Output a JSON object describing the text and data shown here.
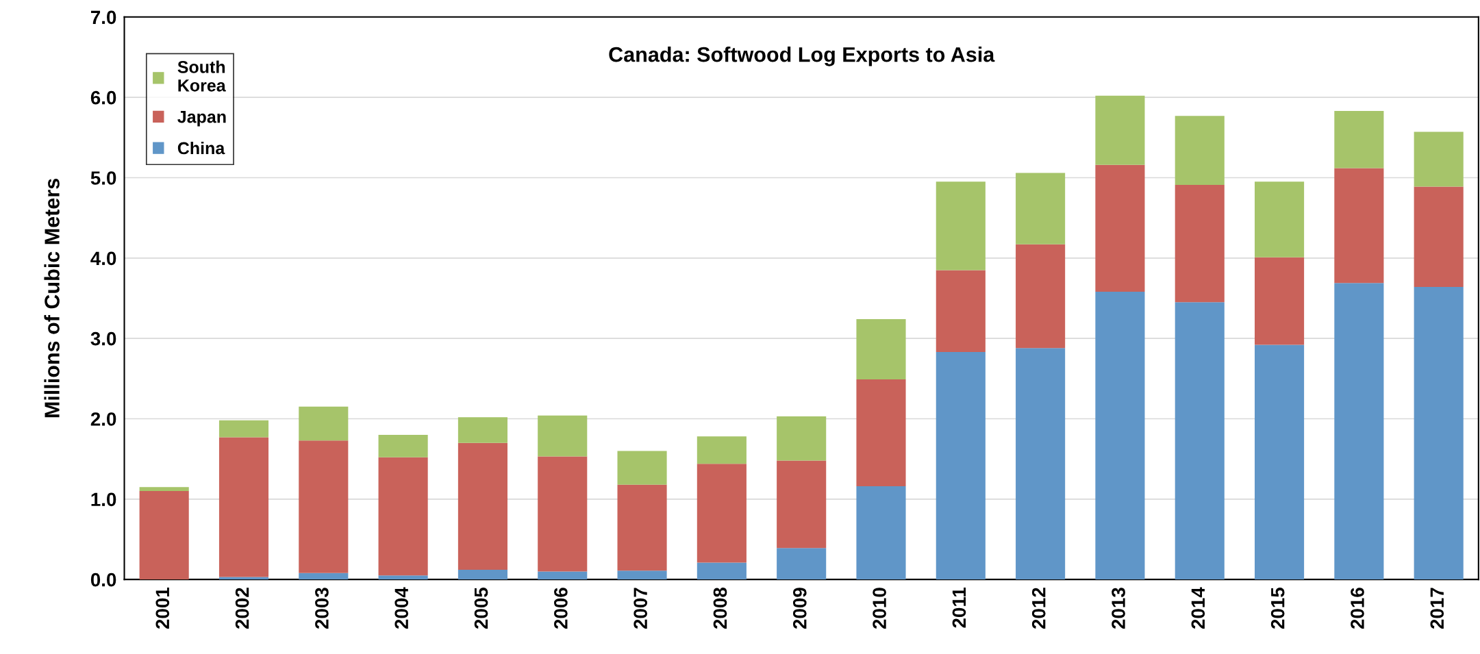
{
  "chart_data": {
    "type": "bar",
    "title": "Canada: Softwood Log Exports to Asia",
    "ylabel": "Millions of Cubic Meters",
    "categories": [
      "2001",
      "2002",
      "2003",
      "2004",
      "2005",
      "2006",
      "2007",
      "2008",
      "2009",
      "2010",
      "2011",
      "2012",
      "2013",
      "2014",
      "2015",
      "2016",
      "2017"
    ],
    "stacked": true,
    "series": [
      {
        "name": "China",
        "color": "#6096c8",
        "values": [
          0.0,
          0.03,
          0.08,
          0.05,
          0.12,
          0.1,
          0.11,
          0.21,
          0.39,
          1.16,
          2.83,
          2.88,
          3.58,
          3.45,
          2.92,
          3.69,
          3.64
        ]
      },
      {
        "name": "Japan",
        "color": "#c9625a",
        "values": [
          1.1,
          1.74,
          1.65,
          1.47,
          1.58,
          1.43,
          1.07,
          1.23,
          1.09,
          1.33,
          1.02,
          1.29,
          1.58,
          1.46,
          1.09,
          1.43,
          1.25
        ]
      },
      {
        "name": "South\nKorea",
        "color": "#a6c46a",
        "values": [
          0.05,
          0.21,
          0.42,
          0.28,
          0.32,
          0.51,
          0.42,
          0.34,
          0.55,
          0.75,
          1.1,
          0.89,
          0.86,
          0.86,
          0.94,
          0.71,
          0.68
        ]
      }
    ],
    "ylim": [
      0,
      7
    ],
    "yticks": [
      {
        "value": 0,
        "label": "0.0"
      },
      {
        "value": 1,
        "label": "1.0"
      },
      {
        "value": 2,
        "label": "2.0"
      },
      {
        "value": 3,
        "label": "3.0"
      },
      {
        "value": 4,
        "label": "4.0"
      },
      {
        "value": 5,
        "label": "5.0"
      },
      {
        "value": 6,
        "label": "6.0"
      },
      {
        "value": 7,
        "label": "7.0"
      }
    ],
    "grid": "y",
    "legend": "top left"
  }
}
